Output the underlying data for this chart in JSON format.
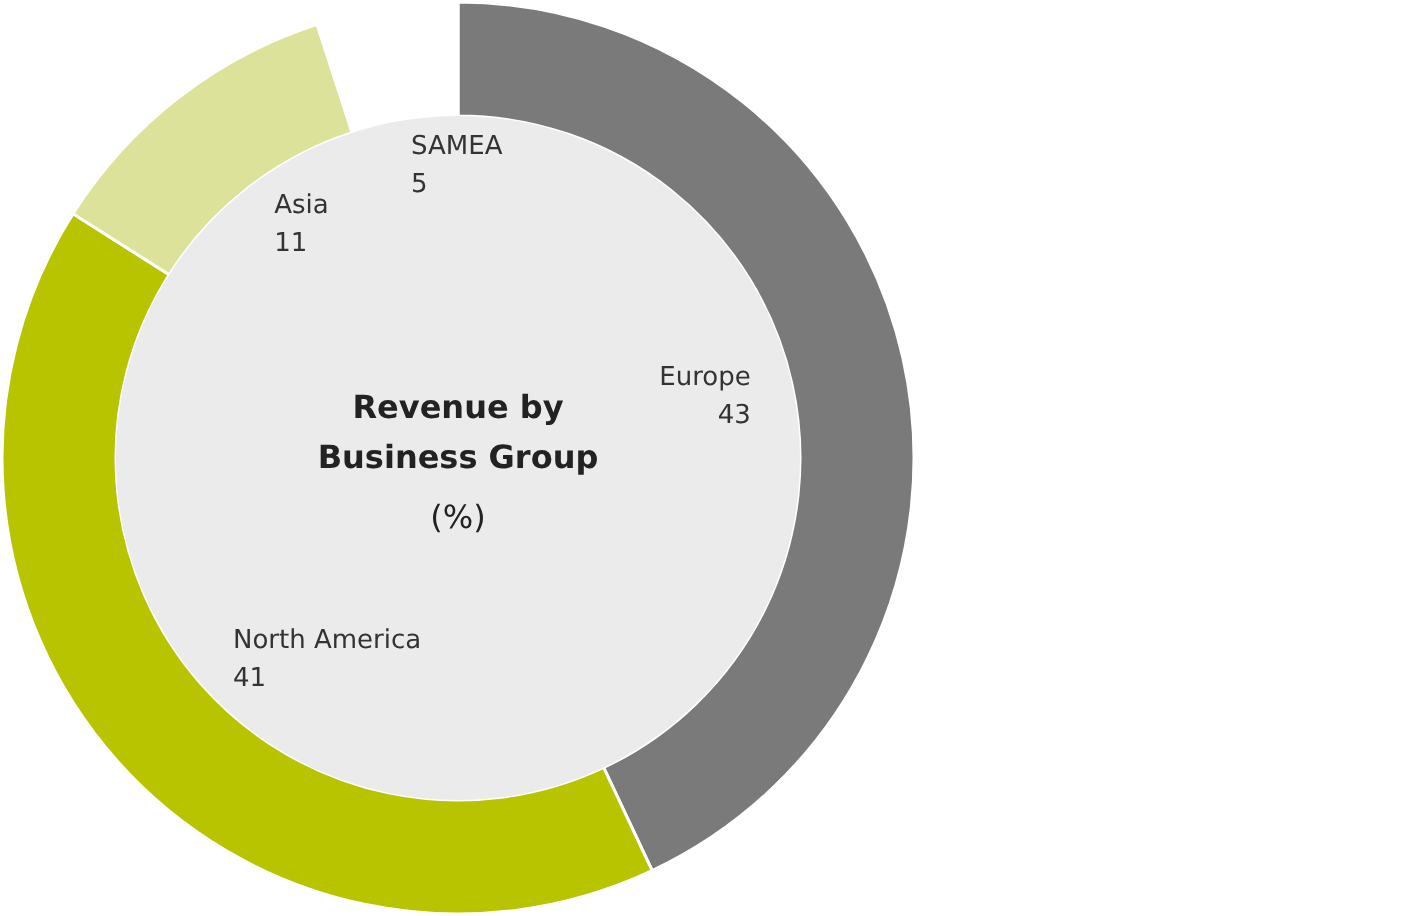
{
  "chart_data": {
    "type": "donut",
    "title": "Revenue by Business Group",
    "subtitle": "(%)",
    "categories": [
      "Europe",
      "North America",
      "Asia",
      "SAMEA"
    ],
    "values": [
      43,
      41,
      11,
      5
    ],
    "colors": [
      "#7a7a7a",
      "#b8c400",
      "#dde29a",
      "#ffffff"
    ],
    "data_labels": true
  }
}
